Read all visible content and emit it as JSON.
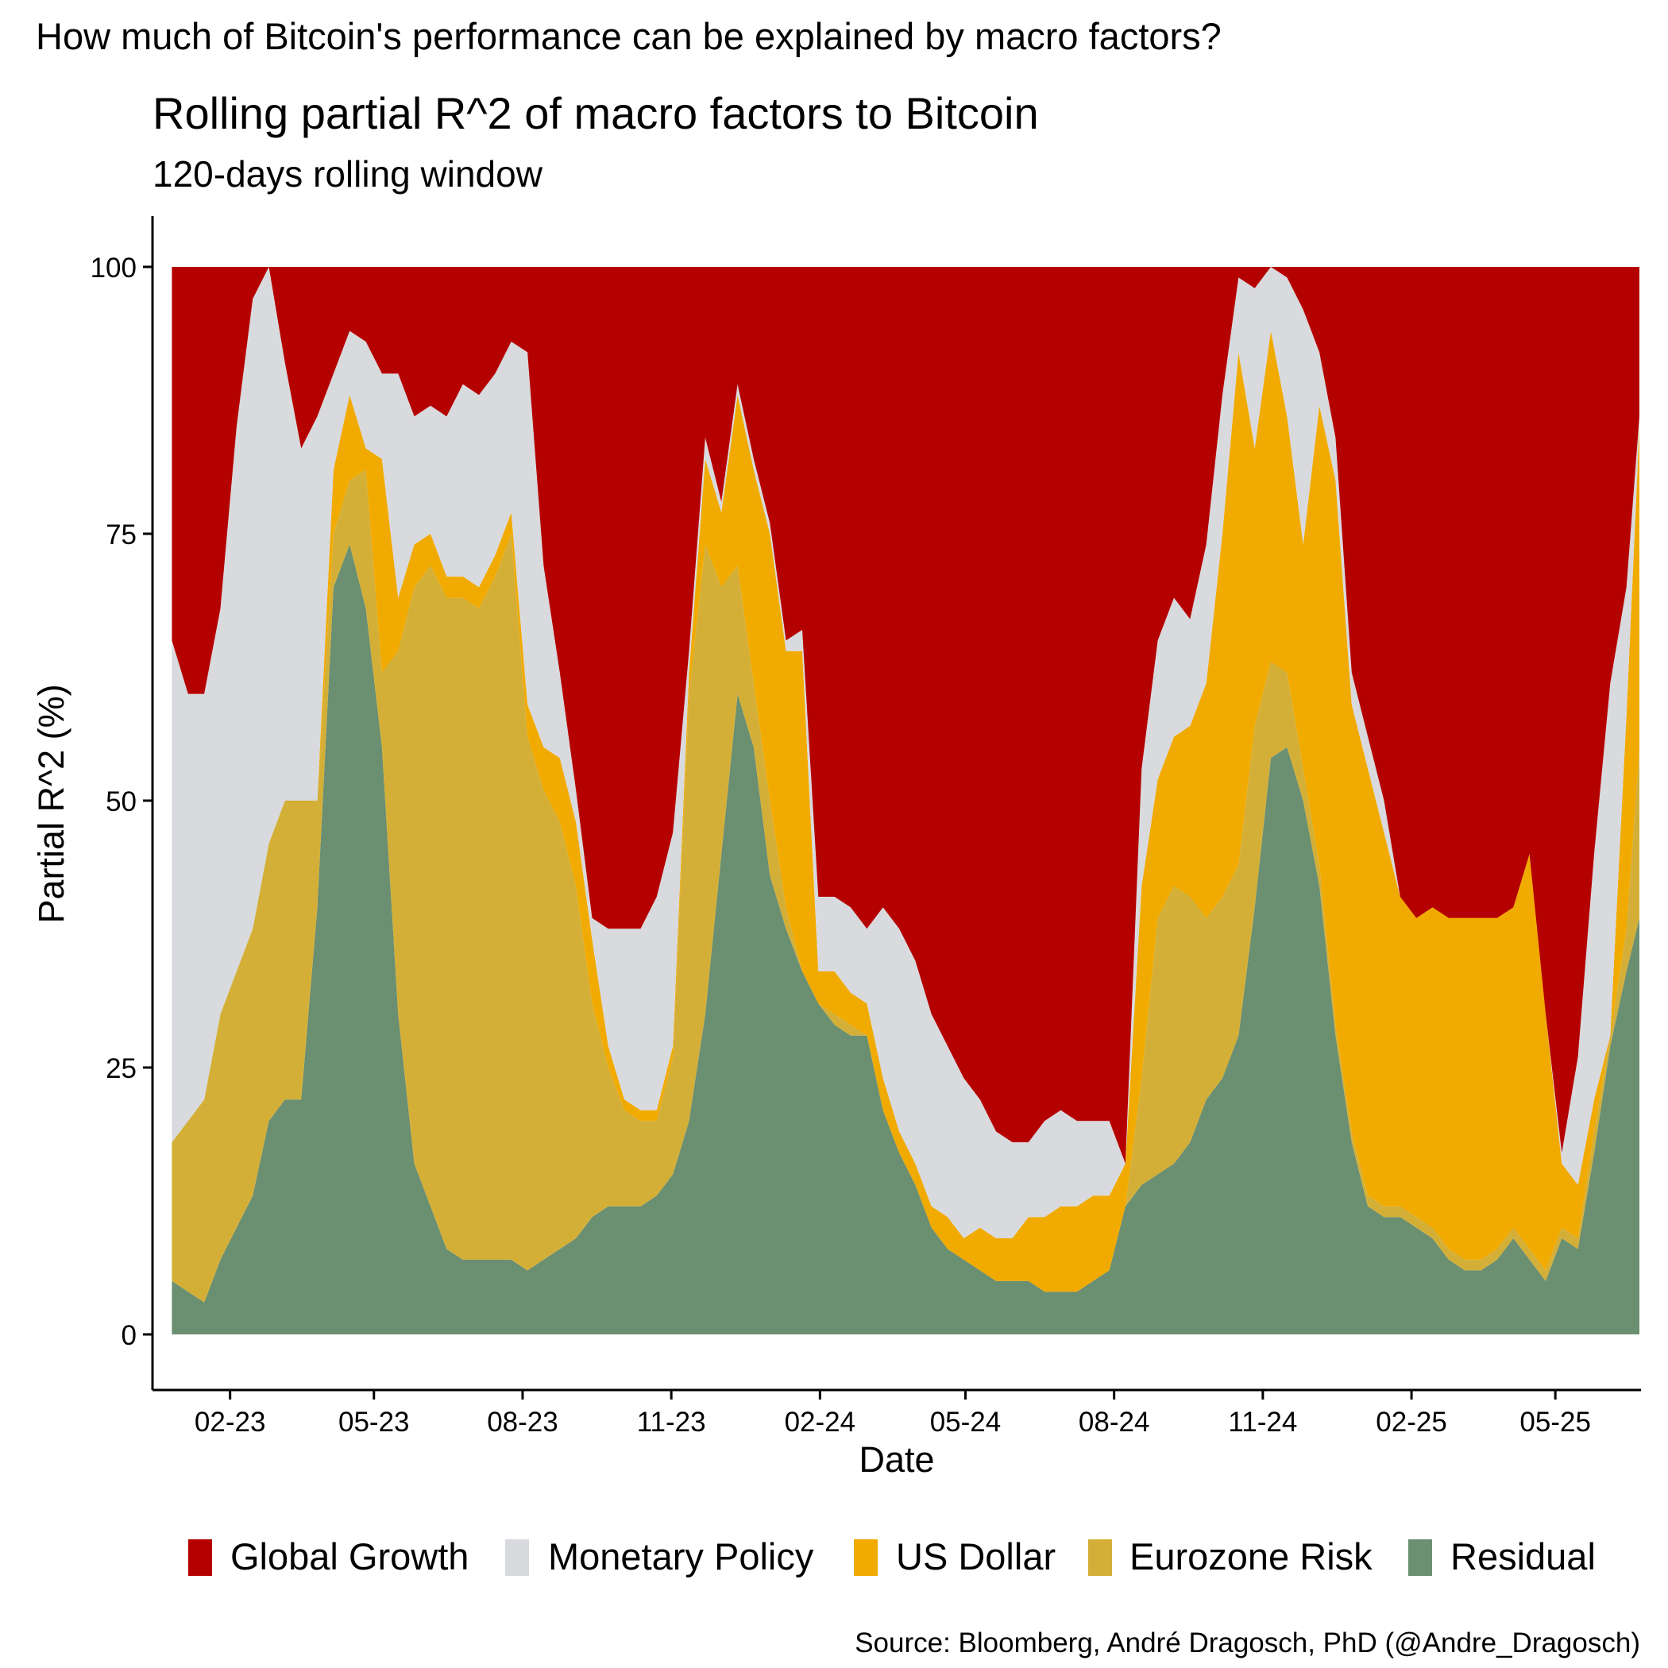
{
  "header": "How much of Bitcoin's performance can be explained by macro factors?",
  "source": "Source: Bloomberg, André Dragosch, PhD (@Andre_Dragosch)",
  "colors": {
    "Global Growth": "#B50000",
    "Monetary Policy": "#D9DADD",
    "US Dollar": "#F1AA00",
    "Eurozone Risk": "#D4AF37",
    "Residual": "#6B8F71"
  },
  "chart_data": {
    "type": "area",
    "stacked": true,
    "title": "Rolling partial R^2 of macro factors to Bitcoin",
    "subtitle": "120-days rolling window",
    "xlabel": "Date",
    "ylabel": "Partial R^2 (%)",
    "ylim": [
      0,
      100
    ],
    "yticks": [
      0,
      25,
      50,
      75,
      100
    ],
    "xlim": [
      "2022-12-15",
      "2025-06-23"
    ],
    "xticks": [
      {
        "date": "2023-02-01",
        "label": "02-23"
      },
      {
        "date": "2023-05-01",
        "label": "05-23"
      },
      {
        "date": "2023-08-01",
        "label": "08-23"
      },
      {
        "date": "2023-11-01",
        "label": "11-23"
      },
      {
        "date": "2024-02-01",
        "label": "02-24"
      },
      {
        "date": "2024-05-01",
        "label": "05-24"
      },
      {
        "date": "2024-08-01",
        "label": "08-24"
      },
      {
        "date": "2024-11-01",
        "label": "11-24"
      },
      {
        "date": "2025-02-01",
        "label": "02-25"
      },
      {
        "date": "2025-05-01",
        "label": "05-25"
      }
    ],
    "legend_position": "bottom",
    "grid": false,
    "x": [
      "2022-12-27",
      "2023-01-06",
      "2023-01-16",
      "2023-01-26",
      "2023-02-05",
      "2023-02-15",
      "2023-02-25",
      "2023-03-07",
      "2023-03-17",
      "2023-03-27",
      "2023-04-06",
      "2023-04-16",
      "2023-04-26",
      "2023-05-06",
      "2023-05-16",
      "2023-05-26",
      "2023-06-05",
      "2023-06-15",
      "2023-06-25",
      "2023-07-05",
      "2023-07-15",
      "2023-07-25",
      "2023-08-04",
      "2023-08-14",
      "2023-08-24",
      "2023-09-03",
      "2023-09-13",
      "2023-09-23",
      "2023-10-03",
      "2023-10-13",
      "2023-10-23",
      "2023-11-02",
      "2023-11-12",
      "2023-11-22",
      "2023-12-02",
      "2023-12-12",
      "2023-12-22",
      "2024-01-01",
      "2024-01-11",
      "2024-01-21",
      "2024-01-31",
      "2024-02-10",
      "2024-02-20",
      "2024-03-01",
      "2024-03-11",
      "2024-03-21",
      "2024-03-31",
      "2024-04-10",
      "2024-04-20",
      "2024-04-30",
      "2024-05-10",
      "2024-05-20",
      "2024-05-30",
      "2024-06-09",
      "2024-06-19",
      "2024-06-29",
      "2024-07-09",
      "2024-07-19",
      "2024-07-29",
      "2024-08-08",
      "2024-08-18",
      "2024-08-28",
      "2024-09-07",
      "2024-09-17",
      "2024-09-27",
      "2024-10-07",
      "2024-10-17",
      "2024-10-27",
      "2024-11-06",
      "2024-11-16",
      "2024-11-26",
      "2024-12-06",
      "2024-12-16",
      "2024-12-26",
      "2025-01-05",
      "2025-01-15",
      "2025-01-25",
      "2025-02-04",
      "2025-02-14",
      "2025-02-24",
      "2025-03-06",
      "2025-03-16",
      "2025-03-26",
      "2025-04-05",
      "2025-04-15",
      "2025-04-25",
      "2025-05-05",
      "2025-05-15",
      "2025-05-25",
      "2025-06-04",
      "2025-06-14",
      "2025-06-22"
    ],
    "series": [
      {
        "name": "Residual",
        "values": [
          5,
          4,
          3,
          7,
          10,
          13,
          20,
          22,
          22,
          40,
          70,
          74,
          68,
          55,
          30,
          16,
          12,
          8,
          7,
          7,
          7,
          7,
          6,
          7,
          8,
          9,
          11,
          12,
          12,
          12,
          13,
          15,
          20,
          30,
          45,
          60,
          55,
          43,
          38,
          34,
          31,
          29,
          28,
          28,
          21,
          17,
          14,
          10,
          8,
          7,
          6,
          5,
          5,
          5,
          4,
          4,
          4,
          5,
          6,
          12,
          14,
          15,
          16,
          18,
          22,
          24,
          28,
          40,
          54,
          55,
          50,
          42,
          28,
          18,
          12,
          11,
          11,
          10,
          9,
          7,
          6,
          6,
          7,
          9,
          7,
          5,
          9,
          8,
          17,
          27,
          34,
          39
        ]
      },
      {
        "name": "Eurozone Risk",
        "values": [
          13,
          16,
          19,
          23,
          24,
          25,
          26,
          28,
          28,
          10,
          5,
          6,
          13,
          7,
          34,
          54,
          60,
          61,
          62,
          61,
          64,
          68,
          50,
          44,
          40,
          33,
          20,
          13,
          9,
          8,
          7,
          11,
          40,
          44,
          25,
          12,
          6,
          7,
          2,
          0,
          0,
          1,
          1,
          0,
          0,
          0,
          0,
          0,
          0,
          0,
          0,
          0,
          0,
          0,
          0,
          0,
          0,
          0,
          0,
          0,
          10,
          24,
          26,
          23,
          17,
          17,
          16,
          17,
          9,
          7,
          3,
          2,
          1,
          1,
          1,
          1,
          1,
          1,
          1,
          1,
          1,
          1,
          1,
          1,
          1,
          1,
          1,
          1,
          2,
          1,
          4,
          16
        ]
      },
      {
        "name": "US Dollar",
        "values": [
          0,
          0,
          0,
          0,
          0,
          0,
          0,
          0,
          0,
          0,
          6,
          8,
          2,
          20,
          5,
          4,
          3,
          2,
          2,
          2,
          2,
          2,
          3,
          4,
          6,
          6,
          6,
          2,
          1,
          1,
          1,
          1,
          2,
          8,
          7,
          16,
          20,
          25,
          24,
          30,
          3,
          4,
          3,
          3,
          3,
          2,
          2,
          2,
          3,
          2,
          4,
          4,
          4,
          6,
          7,
          8,
          8,
          8,
          7,
          4,
          18,
          13,
          14,
          16,
          22,
          34,
          48,
          26,
          31,
          24,
          21,
          43,
          51,
          40,
          40,
          35,
          29,
          28,
          30,
          31,
          32,
          32,
          31,
          30,
          37,
          24,
          6,
          5,
          3,
          0,
          20,
          30
        ]
      },
      {
        "name": "Monetary Policy",
        "values": [
          47,
          40,
          38,
          38,
          51,
          59,
          54,
          41,
          33,
          36,
          9,
          6,
          10,
          8,
          21,
          12,
          12,
          15,
          18,
          18,
          17,
          16,
          33,
          17,
          8,
          3,
          2,
          11,
          16,
          17,
          20,
          20,
          2,
          2,
          1,
          1,
          1,
          1,
          1,
          2,
          7,
          7,
          8,
          7,
          16,
          19,
          19,
          18,
          16,
          15,
          12,
          10,
          9,
          7,
          9,
          9,
          8,
          7,
          7,
          0,
          11,
          13,
          13,
          10,
          13,
          13,
          7,
          15,
          6,
          13,
          22,
          5,
          4,
          3,
          3,
          3,
          0,
          0,
          0,
          0,
          0,
          0,
          0,
          0,
          0,
          0,
          1,
          12,
          23,
          33,
          12,
          1
        ]
      },
      {
        "name": "Global Growth",
        "values": [
          35,
          40,
          40,
          32,
          15,
          3,
          0,
          9,
          17,
          14,
          10,
          6,
          7,
          10,
          10,
          14,
          13,
          14,
          11,
          12,
          10,
          7,
          8,
          28,
          38,
          49,
          61,
          62,
          62,
          62,
          59,
          53,
          36,
          16,
          22,
          11,
          18,
          24,
          35,
          34,
          59,
          59,
          60,
          62,
          60,
          62,
          65,
          70,
          73,
          76,
          78,
          81,
          82,
          82,
          80,
          79,
          80,
          80,
          80,
          84,
          47,
          35,
          31,
          33,
          26,
          12,
          1,
          2,
          0,
          1,
          4,
          8,
          16,
          38,
          44,
          50,
          59,
          61,
          60,
          61,
          61,
          61,
          61,
          60,
          55,
          70,
          83,
          74,
          55,
          39,
          30,
          14
        ]
      }
    ]
  },
  "legend": {
    "items": [
      {
        "label": "Global Growth"
      },
      {
        "label": "Monetary Policy"
      },
      {
        "label": "US Dollar"
      },
      {
        "label": "Eurozone Risk"
      },
      {
        "label": "Residual"
      }
    ]
  }
}
